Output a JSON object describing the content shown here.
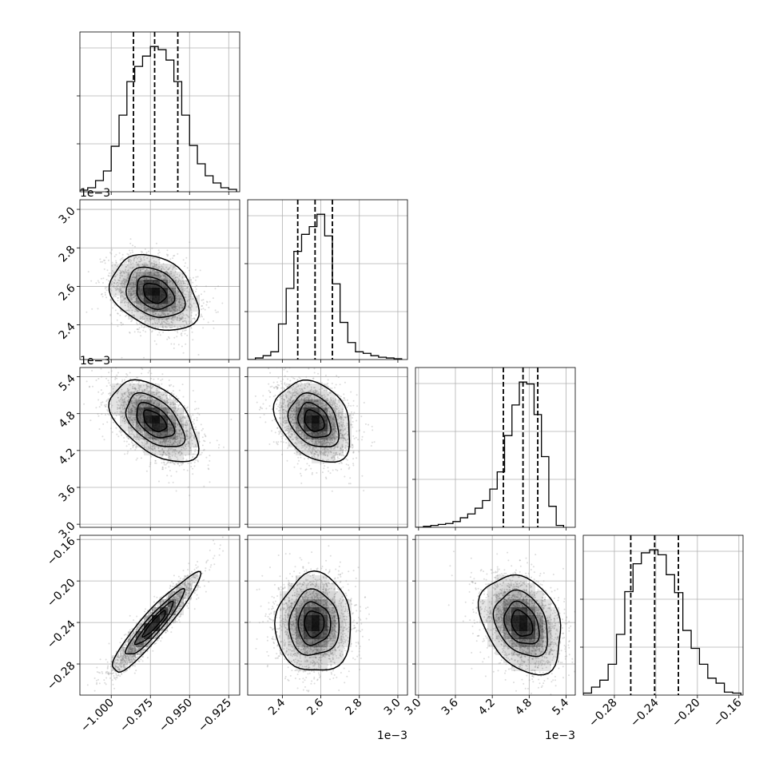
{
  "chart_data": {
    "type": "corner",
    "grid": true,
    "parameters": 4,
    "axes": [
      {
        "range": [
          -1.02,
          -0.918
        ],
        "ticks": [
          -1.0,
          -0.975,
          -0.95,
          -0.925
        ],
        "tick_labels": [
          "−1.000",
          "−0.975",
          "−0.950",
          "−0.925"
        ],
        "offset": ""
      },
      {
        "range": [
          2.22,
          3.05
        ],
        "ticks": [
          2.4,
          2.6,
          2.8,
          3.0
        ],
        "tick_labels": [
          "2.4",
          "2.6",
          "2.8",
          "3.0"
        ],
        "offset": "1e−3"
      },
      {
        "range": [
          2.95,
          5.55
        ],
        "ticks": [
          3.0,
          3.6,
          4.2,
          4.8,
          5.4
        ],
        "tick_labels": [
          "3.0",
          "3.6",
          "4.2",
          "4.8",
          "5.4"
        ],
        "offset": "1e−3"
      },
      {
        "range": [
          -0.31,
          -0.156
        ],
        "ticks": [
          -0.28,
          -0.24,
          -0.2,
          -0.16
        ],
        "tick_labels": [
          "−0.28",
          "−0.24",
          "−0.20",
          "−0.16"
        ],
        "offset": ""
      }
    ],
    "histograms": [
      {
        "param": 0,
        "quantiles": [
          -0.9858,
          -0.9723,
          -0.9575
        ],
        "edges": [
          -1.02,
          -1.015,
          -1.01,
          -1.005,
          -1.0,
          -0.995,
          -0.99,
          -0.985,
          -0.98,
          -0.975,
          -0.97,
          -0.965,
          -0.96,
          -0.955,
          -0.95,
          -0.945,
          -0.94,
          -0.935,
          -0.93,
          -0.925,
          -0.92
        ],
        "counts": [
          2,
          5,
          14,
          26,
          57,
          96,
          138,
          157,
          170,
          182,
          178,
          165,
          138,
          96,
          58,
          35,
          20,
          11,
          5,
          3
        ]
      },
      {
        "param": 1,
        "quantiles": [
          2.48,
          2.57,
          2.66
        ],
        "edges": [
          2.22,
          2.26,
          2.3,
          2.34,
          2.38,
          2.42,
          2.46,
          2.5,
          2.54,
          2.58,
          2.62,
          2.66,
          2.7,
          2.74,
          2.78,
          2.82,
          2.86,
          2.9,
          2.94,
          2.98,
          3.02
        ],
        "counts": [
          0,
          2,
          5,
          10,
          46,
          92,
          140,
          162,
          172,
          188,
          160,
          98,
          48,
          22,
          10,
          8,
          5,
          3,
          2,
          1
        ]
      },
      {
        "param": 2,
        "quantiles": [
          4.38,
          4.7,
          4.94
        ],
        "edges": [
          2.96,
          3.08,
          3.2,
          3.32,
          3.44,
          3.56,
          3.68,
          3.8,
          3.92,
          4.04,
          4.16,
          4.28,
          4.4,
          4.52,
          4.64,
          4.76,
          4.88,
          5.0,
          5.12,
          5.24,
          5.36
        ],
        "counts": [
          0,
          1,
          2,
          3,
          4,
          6,
          10,
          14,
          20,
          28,
          40,
          58,
          96,
          128,
          152,
          150,
          118,
          74,
          22,
          2
        ]
      },
      {
        "param": 3,
        "quantiles": [
          -0.2642,
          -0.2412,
          -0.2183
        ],
        "edges": [
          -0.31,
          -0.302,
          -0.294,
          -0.286,
          -0.278,
          -0.27,
          -0.262,
          -0.254,
          -0.246,
          -0.238,
          -0.23,
          -0.222,
          -0.214,
          -0.206,
          -0.198,
          -0.19,
          -0.182,
          -0.174,
          -0.166,
          -0.158
        ],
        "counts": [
          2,
          8,
          15,
          31,
          61,
          104,
          132,
          143,
          146,
          141,
          121,
          103,
          65,
          47,
          31,
          17,
          12,
          3,
          2
        ]
      }
    ],
    "scatter_pairs": [
      {
        "x": 0,
        "y": 1,
        "mean": [
          -0.9723,
          2.565
        ],
        "sd": [
          0.0135,
          0.095
        ],
        "rho": -0.3
      },
      {
        "x": 0,
        "y": 2,
        "mean": [
          -0.9723,
          4.68
        ],
        "sd": [
          0.0135,
          0.32
        ],
        "rho": -0.5
      },
      {
        "x": 1,
        "y": 2,
        "mean": [
          2.565,
          4.68
        ],
        "sd": [
          0.095,
          0.32
        ],
        "rho": -0.3
      },
      {
        "x": 0,
        "y": 3,
        "mean": [
          -0.9723,
          -0.2412
        ],
        "sd": [
          0.0135,
          0.023
        ],
        "rho": 0.93
      },
      {
        "x": 1,
        "y": 3,
        "mean": [
          2.565,
          -0.2412
        ],
        "sd": [
          0.095,
          0.023
        ],
        "rho": 0.0
      },
      {
        "x": 2,
        "y": 3,
        "mean": [
          4.68,
          -0.2412
        ],
        "sd": [
          0.32,
          0.023
        ],
        "rho": -0.3
      }
    ],
    "contour_levels_sigma": [
      0.5,
      1.0,
      1.5,
      2.0
    ],
    "colors": {
      "line": "#000000",
      "grid": "#b0b0b0",
      "points": "#9a9a9a",
      "density": "#000000"
    }
  }
}
